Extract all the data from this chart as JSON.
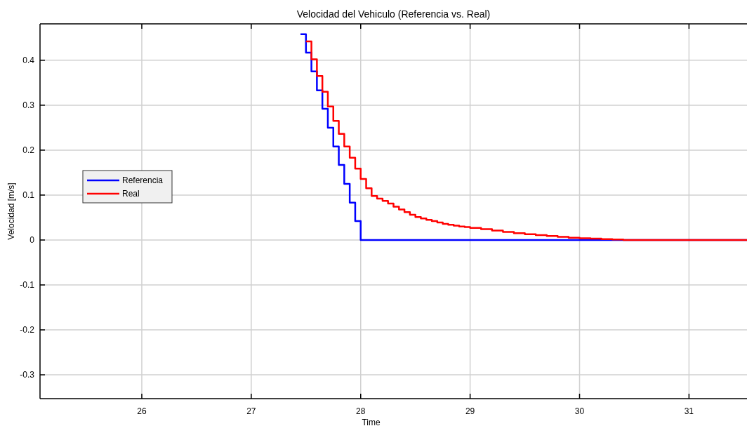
{
  "chart_data": {
    "type": "step",
    "title": "Velocidad del Vehiculo (Referencia vs. Real)",
    "xlabel": "Time",
    "ylabel": "Velocidad [m/s]",
    "xlim": [
      25.07,
      31.53
    ],
    "xticks": [
      26,
      27,
      28,
      29,
      30,
      31
    ],
    "ylim": [
      -0.353,
      0.481
    ],
    "yticks": [
      -0.3,
      -0.2,
      -0.1,
      0,
      0.1,
      0.2,
      0.3,
      0.4
    ],
    "grid": true,
    "legend": "left",
    "line_style": "solid",
    "series": [
      {
        "name": "Referencia",
        "color": "#0000ff",
        "x": [
          27.45,
          27.5,
          27.55,
          27.6,
          27.65,
          27.7,
          27.75,
          27.8,
          27.85,
          27.9,
          27.95,
          28.0,
          31.53
        ],
        "values": [
          0.458,
          0.417,
          0.375,
          0.333,
          0.292,
          0.25,
          0.208,
          0.167,
          0.125,
          0.083,
          0.042,
          0,
          0
        ]
      },
      {
        "name": "Real",
        "color": "#ff0000",
        "x": [
          27.5,
          27.55,
          27.6,
          27.65,
          27.7,
          27.75,
          27.8,
          27.85,
          27.9,
          27.95,
          28.0,
          28.05,
          28.1,
          28.15,
          28.2,
          28.25,
          28.3,
          28.35,
          28.4,
          28.45,
          28.5,
          28.55,
          28.6,
          28.65,
          28.7,
          28.75,
          28.8,
          28.85,
          28.9,
          28.95,
          29.0,
          29.1,
          29.2,
          29.3,
          29.4,
          29.5,
          29.6,
          29.7,
          29.8,
          29.9,
          30.0,
          30.1,
          30.2,
          30.3,
          30.4,
          31.53
        ],
        "values": [
          0.442,
          0.402,
          0.365,
          0.33,
          0.297,
          0.265,
          0.236,
          0.208,
          0.183,
          0.159,
          0.136,
          0.115,
          0.098,
          0.092,
          0.087,
          0.081,
          0.074,
          0.068,
          0.062,
          0.056,
          0.051,
          0.048,
          0.045,
          0.042,
          0.039,
          0.036,
          0.034,
          0.032,
          0.03,
          0.029,
          0.027,
          0.024,
          0.021,
          0.018,
          0.015,
          0.013,
          0.011,
          0.009,
          0.007,
          0.005,
          0.004,
          0.003,
          0.002,
          0.001,
          0,
          0
        ]
      }
    ]
  }
}
